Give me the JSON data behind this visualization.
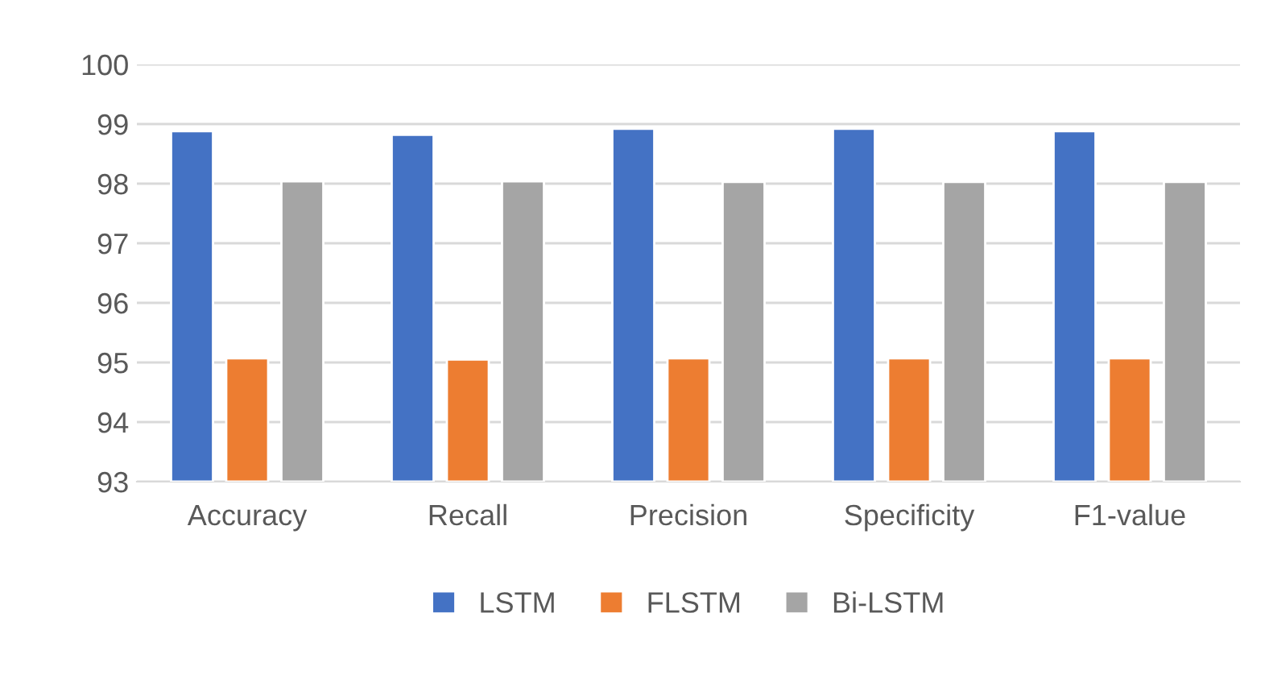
{
  "chart_data": {
    "type": "bar",
    "categories": [
      "Accuracy",
      "Recall",
      "Precision",
      "Specificity",
      "F1-value"
    ],
    "series": [
      {
        "name": "LSTM",
        "color": "#4472c4",
        "values": [
          98.88,
          98.82,
          98.92,
          98.92,
          98.88
        ]
      },
      {
        "name": "FLSTM",
        "color": "#ed7d31",
        "values": [
          95.07,
          95.05,
          95.07,
          95.07,
          95.07
        ]
      },
      {
        "name": "Bi-LSTM",
        "color": "#a5a5a5",
        "values": [
          98.04,
          98.04,
          98.03,
          98.03,
          98.03
        ]
      }
    ],
    "ylim": [
      93,
      100
    ],
    "yticks": [
      93,
      94,
      95,
      96,
      97,
      98,
      99,
      100
    ],
    "grid": "y",
    "legend": "bottom"
  }
}
